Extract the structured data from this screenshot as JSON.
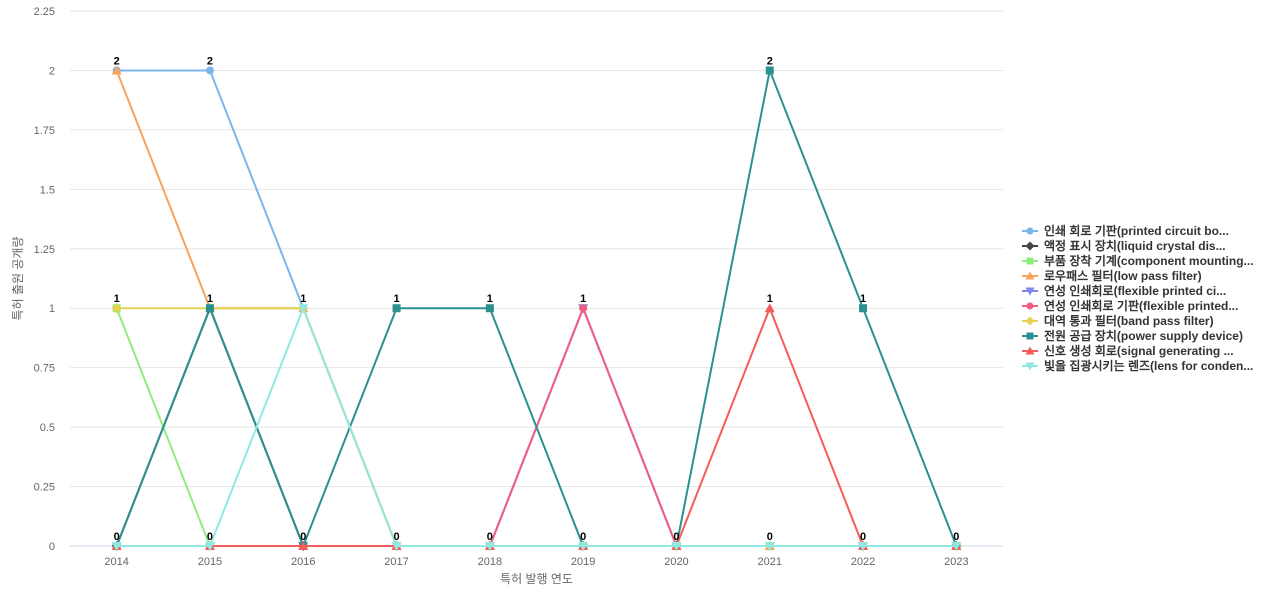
{
  "chart_data": {
    "type": "line",
    "xlabel": "특허 발행 연도",
    "ylabel": "특허 출원 공개량",
    "ylim": [
      0,
      2.25
    ],
    "y_ticks": [
      0,
      0.25,
      0.5,
      0.75,
      1,
      1.25,
      1.5,
      1.75,
      2,
      2.25
    ],
    "y_tick_labels": [
      "0",
      "0.25",
      "0.5",
      "0.75",
      "1",
      "1.25",
      "1.5",
      "1.75",
      "2",
      "2.25"
    ],
    "categories": [
      "2014",
      "2015",
      "2016",
      "2017",
      "2018",
      "2019",
      "2020",
      "2021",
      "2022",
      "2023"
    ],
    "grid": true,
    "legend_position": "right",
    "series": [
      {
        "name": "인쇄 회로 기판(printed circuit bo...",
        "color": "#7cb5ec",
        "marker": "circle",
        "values": [
          2,
          2,
          1,
          0,
          0,
          0,
          0,
          0,
          0,
          0
        ]
      },
      {
        "name": "액정 표시 장치(liquid crystal dis...",
        "color": "#434348",
        "marker": "diamond",
        "values": [
          0,
          1,
          0,
          0,
          0,
          0,
          0,
          0,
          0,
          0
        ]
      },
      {
        "name": "부품 장착 기계(component mounting...",
        "color": "#90ed7d",
        "marker": "square",
        "values": [
          1,
          0,
          0,
          0,
          0,
          0,
          0,
          0,
          0,
          0
        ]
      },
      {
        "name": "로우패스 필터(low pass filter)",
        "color": "#f7a35c",
        "marker": "triangle",
        "values": [
          2,
          1,
          1,
          0,
          0,
          0,
          0,
          0,
          0,
          0
        ]
      },
      {
        "name": "연성 인쇄회로(flexible printed ci...",
        "color": "#8085e9",
        "marker": "triangle-down",
        "values": [
          0,
          0,
          0,
          0,
          0,
          1,
          0,
          0,
          0,
          0
        ]
      },
      {
        "name": "연성 인쇄회로 기판(flexible printed...",
        "color": "#f15c80",
        "marker": "circle",
        "values": [
          0,
          0,
          0,
          0,
          0,
          1,
          0,
          0,
          0,
          0
        ]
      },
      {
        "name": "대역 통과 필터(band pass filter)",
        "color": "#e4d354",
        "marker": "diamond",
        "values": [
          1,
          1,
          1,
          0,
          0,
          0,
          0,
          0,
          0,
          0
        ]
      },
      {
        "name": "전원 공급 장치(power supply device)",
        "color": "#2b908f",
        "marker": "square",
        "values": [
          0,
          1,
          0,
          1,
          1,
          0,
          0,
          2,
          1,
          0
        ]
      },
      {
        "name": "신호 생성 회로(signal generating ...",
        "color": "#f45b5b",
        "marker": "triangle",
        "values": [
          0,
          0,
          0,
          0,
          0,
          0,
          0,
          1,
          0,
          0
        ]
      },
      {
        "name": "빛을 집광시키는 렌즈(lens for conden...",
        "color": "#91e8e1",
        "marker": "triangle-down",
        "values": [
          0,
          0,
          1,
          0,
          0,
          0,
          0,
          0,
          0,
          0
        ]
      }
    ],
    "data_labels": [
      {
        "category": "2014",
        "text": "2",
        "value": 2
      },
      {
        "category": "2014",
        "text": "1",
        "value": 1
      },
      {
        "category": "2014",
        "text": "0",
        "value": 0
      },
      {
        "category": "2015",
        "text": "2",
        "value": 2
      },
      {
        "category": "2015",
        "text": "1",
        "value": 1
      },
      {
        "category": "2015",
        "text": "0",
        "value": 0
      },
      {
        "category": "2016",
        "text": "1",
        "value": 1
      },
      {
        "category": "2016",
        "text": "0",
        "value": 0
      },
      {
        "category": "2017",
        "text": "1",
        "value": 1
      },
      {
        "category": "2017",
        "text": "0",
        "value": 0
      },
      {
        "category": "2018",
        "text": "1",
        "value": 1
      },
      {
        "category": "2018",
        "text": "0",
        "value": 0
      },
      {
        "category": "2019",
        "text": "1",
        "value": 1
      },
      {
        "category": "2019",
        "text": "0",
        "value": 0
      },
      {
        "category": "2020",
        "text": "0",
        "value": 0
      },
      {
        "category": "2021",
        "text": "2",
        "value": 2
      },
      {
        "category": "2021",
        "text": "1",
        "value": 1
      },
      {
        "category": "2021",
        "text": "0",
        "value": 0
      },
      {
        "category": "2022",
        "text": "1",
        "value": 1
      },
      {
        "category": "2022",
        "text": "0",
        "value": 0
      },
      {
        "category": "2023",
        "text": "0",
        "value": 0
      }
    ]
  }
}
